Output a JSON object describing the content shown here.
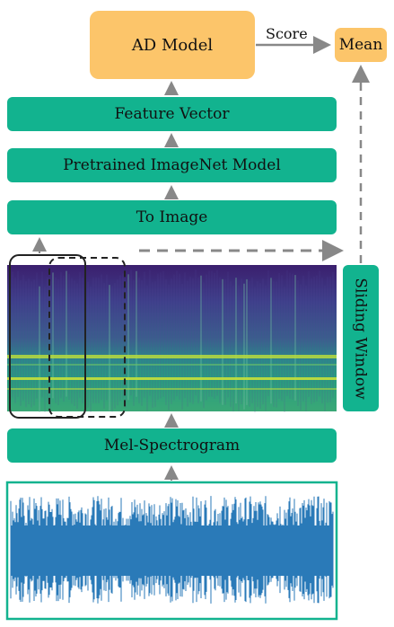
{
  "boxes": {
    "ad_model": "AD Model",
    "mean": "Mean",
    "feature_vector": "Feature Vector",
    "pretrained_model": "Pretrained ImageNet Model",
    "to_image": "To Image",
    "mel_spectrogram": "Mel-Spectrogram",
    "sliding_window": "Sliding Window"
  },
  "edges": {
    "score": "Score"
  },
  "colors": {
    "green": "#12b38f",
    "orange": "#fcc56a",
    "arrow": "#888888",
    "waveform": "#2a7ab8"
  }
}
